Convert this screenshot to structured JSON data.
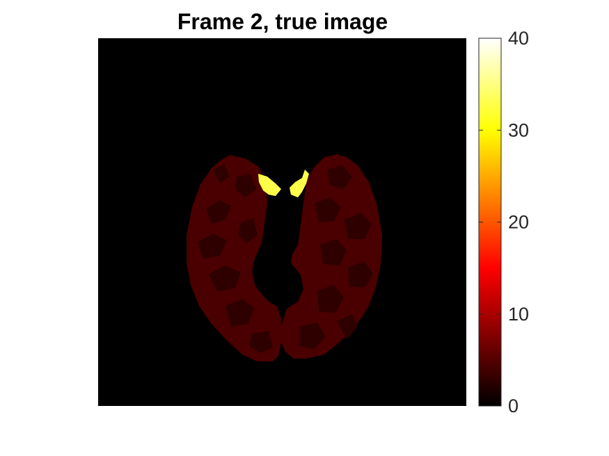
{
  "chart_data": {
    "type": "heatmap",
    "title": "Frame 2, true image",
    "xlabel": "",
    "ylabel": "",
    "axes_visible": false,
    "colormap": "hot",
    "background_value": 0,
    "colorbar": {
      "min": 0,
      "max": 40,
      "ticks": [
        0,
        10,
        20,
        30,
        40
      ],
      "tick_labels": [
        "0",
        "10",
        "20",
        "30",
        "40"
      ],
      "location": "right"
    },
    "regions": [
      {
        "name": "brain-tissue-light",
        "value": 7
      },
      {
        "name": "brain-tissue-dark",
        "value": 4
      },
      {
        "name": "lesion-hotspot-left",
        "value": 36
      },
      {
        "name": "lesion-hotspot-right",
        "value": 36
      },
      {
        "name": "ventricle-void",
        "value": 0
      }
    ]
  },
  "colors": {
    "tissue_light": "#4a0000",
    "tissue_dark": "#2e0000",
    "hotspot": "#ffff4a",
    "background": "#000000",
    "frame": "#262626"
  }
}
